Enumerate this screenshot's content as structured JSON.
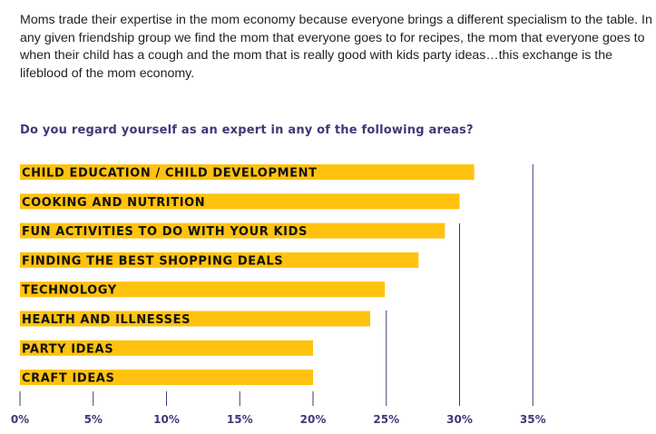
{
  "intro_text": "Moms trade their expertise in the mom economy because everyone brings a different specialism to the table. In any given friendship group we find the mom that everyone goes to for recipes, the mom that everyone goes to when their child has a cough and the mom that is really good with kids party ideas…this exchange is the lifeblood of the mom economy.",
  "chart_data": {
    "type": "bar",
    "orientation": "horizontal",
    "title": "Do you regard yourself as an expert in any of the following areas?",
    "categories": [
      "CHILD EDUCATION / CHILD DEVELOPMENT",
      "COOKING AND NUTRITION",
      "FUN ACTIVITIES TO DO WITH YOUR KIDS",
      "FINDING THE BEST SHOPPING DEALS",
      "TECHNOLOGY",
      "HEALTH AND ILLNESSES",
      "PARTY IDEAS",
      "CRAFT IDEAS"
    ],
    "values": [
      31,
      30,
      29,
      27.2,
      24.9,
      23.9,
      20,
      20
    ],
    "xlim": [
      0,
      35
    ],
    "ticks": [
      0,
      5,
      10,
      15,
      20,
      25,
      30,
      35
    ],
    "tick_labels": [
      "0%",
      "5%",
      "10%",
      "15%",
      "20%",
      "25%",
      "30%",
      "35%"
    ],
    "bar_color": "#ffc20e",
    "axis_color": "#3d3a78"
  }
}
